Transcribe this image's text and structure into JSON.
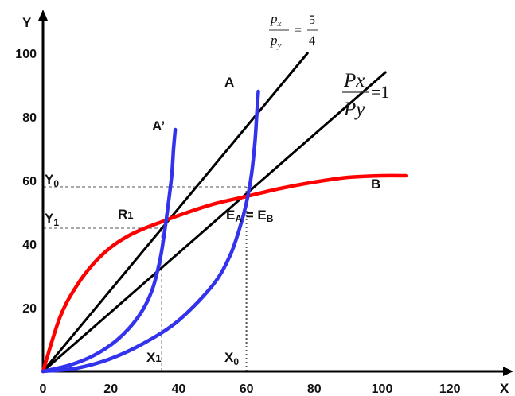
{
  "chart_data": {
    "type": "line",
    "xlabel": "X",
    "ylabel": "Y",
    "xlim": [
      0,
      145
    ],
    "ylim": [
      0,
      105
    ],
    "xticks": [
      0,
      20,
      40,
      60,
      80,
      100,
      120
    ],
    "yticks": [
      20,
      40,
      60,
      80,
      100
    ],
    "grid": false,
    "series": [
      {
        "name": "B",
        "color": "#ff0000",
        "points": [
          [
            0,
            0
          ],
          [
            5,
            17
          ],
          [
            10,
            27
          ],
          [
            15,
            34
          ],
          [
            20,
            39
          ],
          [
            25,
            42.5
          ],
          [
            30,
            45
          ],
          [
            35,
            47
          ],
          [
            40,
            49
          ],
          [
            50,
            52.5
          ],
          [
            60,
            55
          ],
          [
            70,
            57.5
          ],
          [
            80,
            59.5
          ],
          [
            90,
            61
          ],
          [
            100,
            61.5
          ],
          [
            107,
            61.5
          ]
        ]
      },
      {
        "name": "A",
        "color": "#3333ee",
        "points": [
          [
            0,
            0
          ],
          [
            10,
            1
          ],
          [
            20,
            4
          ],
          [
            30,
            9
          ],
          [
            40,
            16
          ],
          [
            50,
            27
          ],
          [
            55,
            36
          ],
          [
            58,
            45
          ],
          [
            60,
            53
          ],
          [
            61.5,
            62
          ],
          [
            62.5,
            72
          ],
          [
            63,
            80
          ],
          [
            63.5,
            88
          ]
        ]
      },
      {
        "name": "A'",
        "color": "#3333ee",
        "points": [
          [
            0,
            0
          ],
          [
            8,
            2
          ],
          [
            15,
            5
          ],
          [
            22,
            10
          ],
          [
            28,
            17
          ],
          [
            32,
            25
          ],
          [
            34.5,
            35
          ],
          [
            36,
            45
          ],
          [
            37,
            53
          ],
          [
            38,
            62
          ],
          [
            38.5,
            70
          ],
          [
            39,
            76
          ]
        ]
      },
      {
        "name": "",
        "color": "#000000",
        "points": [
          [
            0,
            0
          ],
          [
            78,
            100
          ]
        ]
      },
      {
        "name": "",
        "color": "#000000",
        "points": [
          [
            0,
            0
          ],
          [
            101,
            94
          ]
        ]
      }
    ],
    "reference_lines": [
      {
        "value": 58,
        "orient": "h",
        "from": 0,
        "to": 60,
        "style": "dashed"
      },
      {
        "value": 45,
        "orient": "h",
        "from": 0,
        "to": 35,
        "style": "dashed"
      },
      {
        "value": 35,
        "orient": "v",
        "from": 0,
        "to": 45,
        "style": "dashed"
      },
      {
        "value": 60,
        "orient": "v",
        "from": 0,
        "to": 58,
        "style": "dotted"
      }
    ],
    "annotations": {
      "A": "A",
      "A_prime": "A’",
      "B": "B",
      "R1": "R",
      "R1_sub": "1",
      "E": "E",
      "E_subA": "A",
      "E_eq": " = E",
      "E_subB": "B",
      "Y0": "Y",
      "Y0_sub": "0",
      "Y1": "Y",
      "Y1_sub": "1",
      "X1": "X",
      "X1_sub": "1",
      "X0": "X",
      "X0_sub": "0",
      "ratio_px": "p",
      "ratio_px_sub": "x",
      "ratio_py": "p",
      "ratio_py_sub": "y",
      "ratio1_eq": "=",
      "ratio1_num": "5",
      "ratio1_den": "4",
      "ratio2_num": "Px",
      "ratio2_den": "Py",
      "ratio2_rhs": "=1"
    }
  }
}
